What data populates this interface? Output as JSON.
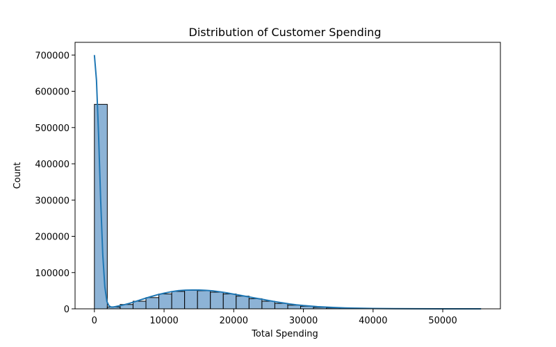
{
  "chart_data": {
    "type": "bar",
    "title": "Distribution of Customer Spending",
    "xlabel": "Total Spending",
    "ylabel": "Count",
    "xlim": [
      -2775,
      58275
    ],
    "ylim": [
      0,
      735000
    ],
    "x_ticks": [
      0,
      10000,
      20000,
      30000,
      40000,
      50000
    ],
    "y_ticks": [
      0,
      100000,
      200000,
      300000,
      400000,
      500000,
      600000,
      700000
    ],
    "bin_width": 1850,
    "bins": [
      {
        "x0": 0,
        "x1": 1850,
        "count": 564000
      },
      {
        "x0": 1850,
        "x1": 3700,
        "count": 5000
      },
      {
        "x0": 3700,
        "x1": 5550,
        "count": 12000
      },
      {
        "x0": 5550,
        "x1": 7400,
        "count": 21000
      },
      {
        "x0": 7400,
        "x1": 9250,
        "count": 31000
      },
      {
        "x0": 9250,
        "x1": 11100,
        "count": 41000
      },
      {
        "x0": 11100,
        "x1": 12950,
        "count": 48000
      },
      {
        "x0": 12950,
        "x1": 14800,
        "count": 51000
      },
      {
        "x0": 14800,
        "x1": 16650,
        "count": 50000
      },
      {
        "x0": 16650,
        "x1": 18500,
        "count": 46000
      },
      {
        "x0": 18500,
        "x1": 20350,
        "count": 41000
      },
      {
        "x0": 20350,
        "x1": 22200,
        "count": 35000
      },
      {
        "x0": 22200,
        "x1": 24050,
        "count": 28000
      },
      {
        "x0": 24050,
        "x1": 25900,
        "count": 21000
      },
      {
        "x0": 25900,
        "x1": 27750,
        "count": 15000
      },
      {
        "x0": 27750,
        "x1": 29600,
        "count": 10000
      },
      {
        "x0": 29600,
        "x1": 31450,
        "count": 7000
      },
      {
        "x0": 31450,
        "x1": 33300,
        "count": 4000
      },
      {
        "x0": 33300,
        "x1": 35150,
        "count": 2500
      },
      {
        "x0": 35150,
        "x1": 37000,
        "count": 1500
      },
      {
        "x0": 37000,
        "x1": 38850,
        "count": 1000
      },
      {
        "x0": 38850,
        "x1": 40700,
        "count": 600
      },
      {
        "x0": 40700,
        "x1": 42550,
        "count": 400
      },
      {
        "x0": 42550,
        "x1": 44400,
        "count": 300
      },
      {
        "x0": 44400,
        "x1": 46250,
        "count": 200
      },
      {
        "x0": 46250,
        "x1": 48100,
        "count": 150
      },
      {
        "x0": 48100,
        "x1": 49950,
        "count": 100
      },
      {
        "x0": 49950,
        "x1": 51800,
        "count": 80
      },
      {
        "x0": 51800,
        "x1": 53650,
        "count": 50
      },
      {
        "x0": 53650,
        "x1": 55500,
        "count": 30
      }
    ],
    "kde": {
      "x": [
        0,
        300,
        600,
        900,
        1200,
        1500,
        1800,
        2100,
        2400,
        2700,
        3000,
        4000,
        5000,
        6000,
        7000,
        8000,
        9000,
        10000,
        11000,
        12000,
        13000,
        14000,
        15000,
        16000,
        17000,
        18000,
        19000,
        20000,
        21000,
        22000,
        23000,
        24000,
        25000,
        26000,
        27000,
        28000,
        29000,
        30000,
        32000,
        34000,
        36000,
        38000,
        40000,
        43000,
        46000,
        50000,
        55500
      ],
      "y": [
        700000,
        630000,
        480000,
        300000,
        150000,
        60000,
        20000,
        8000,
        5000,
        5000,
        6000,
        10000,
        15000,
        21000,
        27000,
        33000,
        38500,
        43000,
        47000,
        50000,
        51500,
        52000,
        52000,
        51000,
        49500,
        47000,
        44000,
        40500,
        37000,
        33500,
        30000,
        26500,
        23000,
        19500,
        16500,
        13500,
        11000,
        9000,
        6000,
        4000,
        2500,
        1600,
        1000,
        500,
        250,
        100,
        20
      ]
    },
    "grid": false,
    "legend": "none",
    "colors": {
      "bar_fill": "#8db3d6",
      "bar_edge": "#000000",
      "kde_line": "#1f77b4",
      "axis": "#000000"
    }
  }
}
